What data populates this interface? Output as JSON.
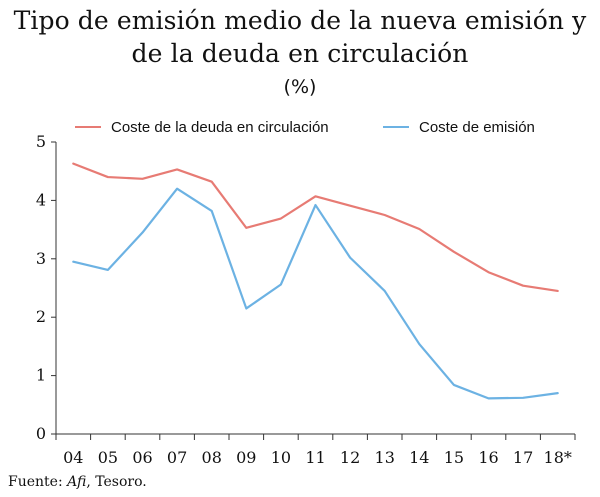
{
  "chart_data": {
    "type": "line",
    "title": "Tipo de emisión medio de la nueva emisión y de la deuda en circulación",
    "title_lines": [
      "Tipo de emisión medio de la nueva emisión y",
      "de la deuda en circulación"
    ],
    "subtitle": "(%)",
    "categories": [
      "04",
      "05",
      "06",
      "07",
      "08",
      "09",
      "10",
      "11",
      "12",
      "13",
      "14",
      "15",
      "16",
      "17",
      "18*"
    ],
    "ylim": [
      0,
      5
    ],
    "yticks": [
      "0",
      "1",
      "2",
      "3",
      "4",
      "5"
    ],
    "grid": false,
    "legend_position": "top",
    "series": [
      {
        "name": "Coste de la deuda en circulación",
        "color": "#e77b74",
        "values": [
          4.63,
          4.4,
          4.37,
          4.53,
          4.32,
          3.53,
          3.69,
          4.07,
          3.91,
          3.75,
          3.51,
          3.12,
          2.77,
          2.54,
          2.45
        ]
      },
      {
        "name": "Coste de emisión",
        "color": "#6cb2e3",
        "values": [
          2.95,
          2.81,
          3.45,
          4.2,
          3.82,
          2.15,
          2.56,
          3.92,
          3.02,
          2.45,
          1.54,
          0.84,
          0.61,
          0.62,
          0.7
        ]
      }
    ]
  },
  "source": {
    "prefix": "Fuente: ",
    "italic": "Afi",
    "suffix": ", Tesoro."
  }
}
